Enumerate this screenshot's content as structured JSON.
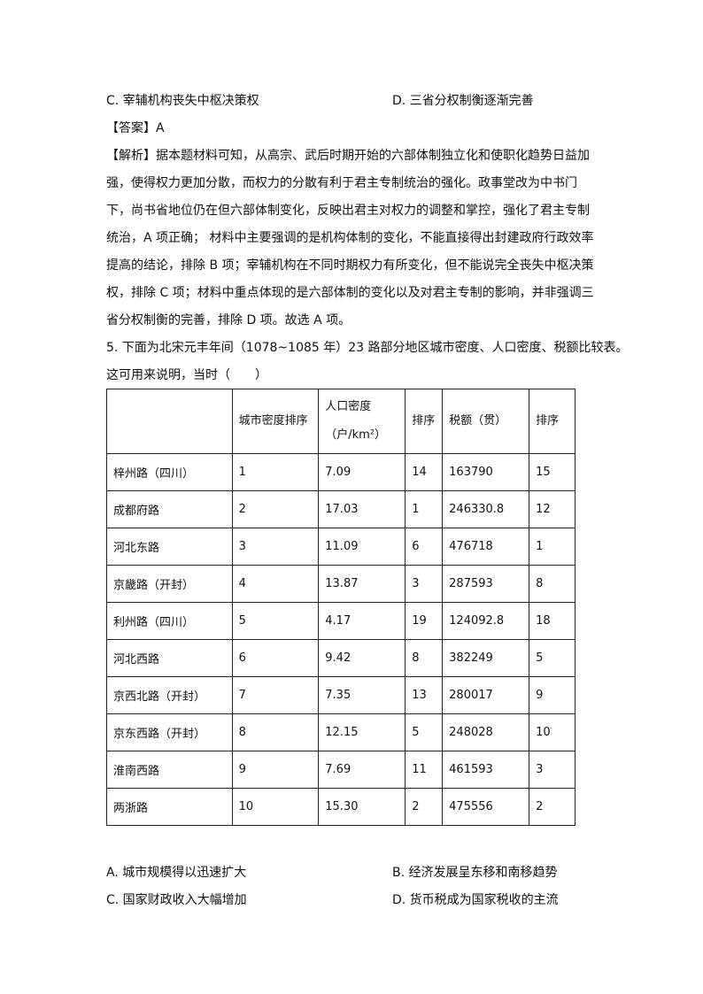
{
  "prev_options": {
    "c": "C. 宰辅机构丧失中枢决策权",
    "d": "D. 三省分权制衡逐渐完善"
  },
  "answer": "【答案】A",
  "analysis": [
    "【解析】据本题材料可知，从高宗、武后时期开始的六部体制独立化和使职化趋势日益加",
    "强，使得权力更加分散，而权力的分散有利于君主专制统治的强化。政事堂改为中书门",
    "下，尚书省地位仍在但六部体制变化，反映出君主对权力的调整和掌控，强化了君主专制",
    "统治，A 项正确； 材料中主要强调的是机构体制的变化，不能直接得出封建政府行政效率",
    "提高的结论，排除 B 项；宰辅机构在不同时期权力有所变化，但不能说完全丧失中枢决策",
    "权，排除 C 项；材料中重点体现的是六部体制的变化以及对君主专制的影响，并非强调三",
    "省分权制衡的完善，排除 D 项。故选 A 项。"
  ],
  "question": [
    "5. 下面为北宋元丰年间（1078~1085 年）23 路部分地区城市密度、人口密度、税额比较表。",
    "这可用来说明，当时（　　）"
  ],
  "table": {
    "headers": [
      "",
      "城市密度排序",
      "人口密度（户/km²）",
      "排序",
      "税额（贯）",
      "排序"
    ],
    "rows": [
      [
        "梓州路（四川）",
        "1",
        "7.09",
        "14",
        "163790",
        "15"
      ],
      [
        "成都府路",
        "2",
        "17.03",
        "1",
        "246330.8",
        "12"
      ],
      [
        "河北东路",
        "3",
        "11.09",
        "6",
        "476718",
        "1"
      ],
      [
        "京畿路（开封）",
        "4",
        "13.87",
        "3",
        "287593",
        "8"
      ],
      [
        "利州路（四川）",
        "5",
        "4.17",
        "19",
        "124092.8",
        "18"
      ],
      [
        "河北西路",
        "6",
        "9.42",
        "8",
        "382249",
        "5"
      ],
      [
        "京西北路（开封）",
        "7",
        "7.35",
        "13",
        "280017",
        "9"
      ],
      [
        "京东西路（开封）",
        "8",
        "12.15",
        "5",
        "248028",
        "10"
      ],
      [
        "淮南西路",
        "9",
        "7.69",
        "11",
        "461593",
        "3"
      ],
      [
        "两浙路",
        "10",
        "15.30",
        "2",
        "475556",
        "2"
      ]
    ]
  },
  "options": {
    "a": "A. 城市规模得以迅速扩大",
    "b": "B. 经济发展呈东移和南移趋势",
    "c": "C. 国家财政收入大幅增加",
    "d": "D. 货币税成为国家税收的主流"
  }
}
